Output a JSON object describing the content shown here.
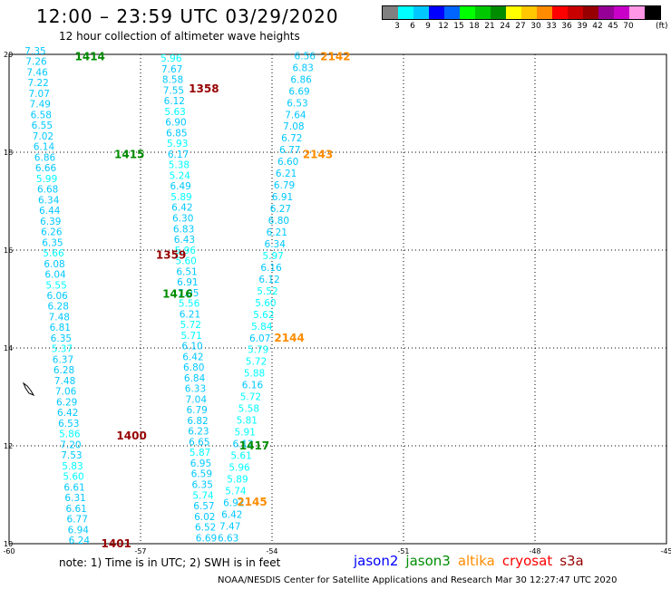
{
  "header": {
    "title": "12:00 – 23:59 UTC 03/29/2020",
    "subtitle": "12 hour collection of altimeter wave heights"
  },
  "color_legend": {
    "unit": "(ft)",
    "colors": [
      "#808080",
      "#00ffff",
      "#00c8ff",
      "#0000ff",
      "#0064ff",
      "#00ff00",
      "#00c800",
      "#008c00",
      "#ffff00",
      "#ffc800",
      "#ff8c00",
      "#ff0000",
      "#c80000",
      "#960000",
      "#960096",
      "#c800c8",
      "#ff96e6",
      "#000000"
    ],
    "labels": [
      "3",
      "6",
      "9",
      "12",
      "15",
      "18",
      "21",
      "24",
      "27",
      "30",
      "33",
      "36",
      "39",
      "42",
      "45",
      "70"
    ]
  },
  "map": {
    "x_ticks": [
      "-60",
      "-57",
      "-54",
      "-51",
      "-48",
      "-45"
    ],
    "y_ticks": [
      "20",
      "18",
      "16",
      "14",
      "12",
      "10"
    ],
    "lon_range": [
      -60,
      -45
    ],
    "lat_range": [
      10,
      20
    ],
    "track_labels": [
      {
        "text": "1414",
        "color": "#008c00",
        "lon": -58.5,
        "lat": 19.95
      },
      {
        "text": "1358",
        "color": "#960000",
        "lon": -55.9,
        "lat": 19.3
      },
      {
        "text": "2142",
        "color": "#ff8c00",
        "lon": -52.9,
        "lat": 19.95
      },
      {
        "text": "1415",
        "color": "#008c00",
        "lon": -57.6,
        "lat": 17.95
      },
      {
        "text": "2143",
        "color": "#ff8c00",
        "lon": -53.3,
        "lat": 17.95
      },
      {
        "text": "1359",
        "color": "#960000",
        "lon": -56.65,
        "lat": 15.9
      },
      {
        "text": "1416",
        "color": "#008c00",
        "lon": -56.5,
        "lat": 15.1
      },
      {
        "text": "2144",
        "color": "#ff8c00",
        "lon": -53.95,
        "lat": 14.2
      },
      {
        "text": "1400",
        "color": "#960000",
        "lon": -57.55,
        "lat": 12.2
      },
      {
        "text": "1417",
        "color": "#008c00",
        "lon": -54.75,
        "lat": 12.0
      },
      {
        "text": "2145",
        "color": "#ff8c00",
        "lon": -54.8,
        "lat": 10.85
      },
      {
        "text": "1401",
        "color": "#960000",
        "lon": -57.9,
        "lat": 10.0
      }
    ],
    "tracks": [
      {
        "name": "1414-1415-1359-1400",
        "start": [
          -59.4,
          20.0
        ],
        "end": [
          -58.4,
          10.0
        ],
        "values": [
          "7.35",
          "7.26",
          "7.46",
          "7.22",
          "7.07",
          "7.49",
          "6.58",
          "6.55",
          "7.02",
          "6.14",
          "6.86",
          "6.66",
          "5.99",
          "6.68",
          "6.34",
          "6.44",
          "6.39",
          "6.26",
          "6.35",
          "5.66",
          "6.08",
          "6.04",
          "5.55",
          "6.06",
          "6.28",
          "7.48",
          "6.81",
          "6.35",
          "5.37",
          "6.37",
          "6.28",
          "7.48",
          "7.06",
          "6.29",
          "6.42",
          "6.53",
          "5.86",
          "7.20",
          "7.53",
          "5.83",
          "5.60",
          "6.61",
          "6.31",
          "6.61",
          "6.77",
          "6.94",
          "6.24"
        ]
      },
      {
        "name": "1358-1416-1417-1401",
        "start": [
          -56.3,
          19.85
        ],
        "end": [
          -55.5,
          10.05
        ],
        "values": [
          "5.96",
          "7.67",
          "8.58",
          "7.55",
          "6.12",
          "5.63",
          "6.90",
          "6.85",
          "5.93",
          "6.17",
          "5.38",
          "5.24",
          "6.49",
          "5.89",
          "6.42",
          "6.30",
          "6.83",
          "6.43",
          "5.96",
          "5.60",
          "6.51",
          "6.91",
          "7.05",
          "5.56",
          "6.21",
          "5.72",
          "5.71",
          "6.10",
          "6.42",
          "6.80",
          "6.84",
          "6.33",
          "7.04",
          "6.79",
          "6.82",
          "6.23",
          "6.65",
          "5.87",
          "6.95",
          "6.59",
          "6.35",
          "5.74",
          "6.57",
          "6.02",
          "6.52",
          "6.69"
        ]
      },
      {
        "name": "2142-2143-2144-2145",
        "start": [
          -53.25,
          19.9
        ],
        "end": [
          -55.0,
          10.05
        ],
        "values": [
          "6.56",
          "6.83",
          "6.86",
          "6.69",
          "6.53",
          "7.64",
          "7.08",
          "6.72",
          "6.77",
          "6.60",
          "6.21",
          "6.79",
          "6.91",
          "6.27",
          "6.80",
          "6.21",
          "6.34",
          "5.97",
          "6.16",
          "6.12",
          "5.52",
          "5.60",
          "5.62",
          "5.84",
          "6.07",
          "5.79",
          "5.72",
          "5.88",
          "6.16",
          "5.72",
          "5.58",
          "5.81",
          "5.91",
          "6.12",
          "5.61",
          "5.96",
          "5.89",
          "5.74",
          "6.92",
          "6.42",
          "7.47",
          "6.63"
        ]
      }
    ]
  },
  "footer": {
    "note": "note:  1) Time is in UTC;  2) SWH is in feet",
    "satellites": [
      {
        "name": "jason2",
        "color": "#0000ff"
      },
      {
        "name": "jason3",
        "color": "#008c00"
      },
      {
        "name": "altika",
        "color": "#ff8c00"
      },
      {
        "name": "cryosat",
        "color": "#ff0000"
      },
      {
        "name": "s3a",
        "color": "#960000"
      }
    ],
    "credit": "NOAA/NESDIS Center for Satellite Applications and Research    Mar 30 12:27:47 UTC 2020"
  }
}
